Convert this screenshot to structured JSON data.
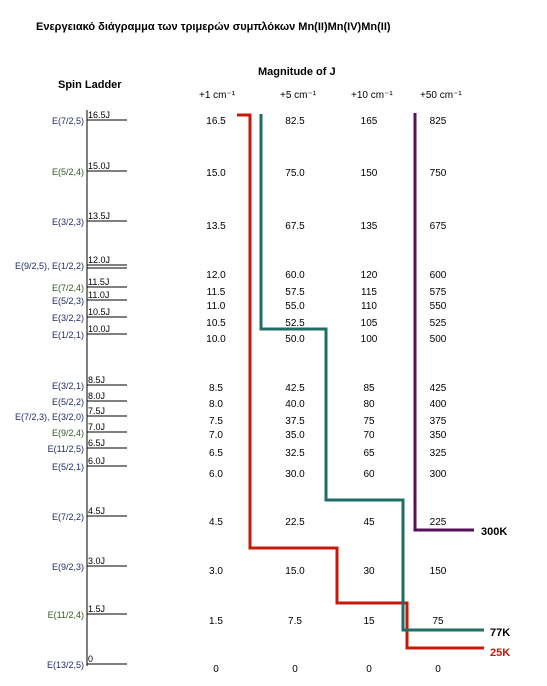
{
  "title": "Ενεργειακό διάγραμμα των τριμερών συμπλόκων Mn(II)Mn(IV)Mn(II)",
  "spin_ladder": {
    "heading": "Spin Ladder",
    "levels": [
      {
        "state": "E(7/2,5)",
        "energy": 16.5,
        "label": "16.5J",
        "state_color": "#1f2a6a"
      },
      {
        "state": "E(5/2,4)",
        "energy": 15.0,
        "label": "15.0J",
        "state_color": "#2e5a1e"
      },
      {
        "state": "E(3/2,3)",
        "energy": 13.5,
        "label": "13.5J",
        "state_color": "#1f2a6a"
      },
      {
        "state": "E(9/2,5), E(1/2,2)",
        "energy": 12.0,
        "label": "12.0J",
        "state_color": "#1f2a6a"
      },
      {
        "state": "E(7/2,4)",
        "energy": 11.5,
        "label": "11.5J",
        "state_color": "#2e5a1e"
      },
      {
        "state": "E(5/2,3)",
        "energy": 11.0,
        "label": "11.0J",
        "state_color": "#1f2a6a"
      },
      {
        "state": "E(3/2,2)",
        "energy": 10.5,
        "label": "10.5J",
        "state_color": "#1f2a6a"
      },
      {
        "state": "E(1/2,1)",
        "energy": 10.0,
        "label": "10.0J",
        "state_color": "#1f2a6a"
      },
      {
        "state": "E(3/2,1)",
        "energy": 8.5,
        "label": "8.5J",
        "state_color": "#1f2a6a"
      },
      {
        "state": "E(5/2,2)",
        "energy": 8.0,
        "label": "8.0J",
        "state_color": "#1f2a6a"
      },
      {
        "state": "E(7/2,3), E(3/2,0)",
        "energy": 7.5,
        "label": "7.5J",
        "state_color": "#1f2a6a"
      },
      {
        "state": "E(9/2,4)",
        "energy": 7.0,
        "label": "7.0J",
        "state_color": "#2e5a1e"
      },
      {
        "state": "E(11/2,5)",
        "energy": 6.5,
        "label": "6.5J",
        "state_color": "#1f2a6a"
      },
      {
        "state": "E(5/2,1)",
        "energy": 6.0,
        "label": "6.0J",
        "state_color": "#1f2a6a"
      },
      {
        "state": "E(7/2,2)",
        "energy": 4.5,
        "label": "4.5J",
        "state_color": "#1f2a6a"
      },
      {
        "state": "E(9/2,3)",
        "energy": 3.0,
        "label": "3.0J",
        "state_color": "#1f2a6a"
      },
      {
        "state": "E(11/2,4)",
        "energy": 1.5,
        "label": "1.5J",
        "state_color": "#2e5a1e"
      },
      {
        "state": "E(13/2,5)",
        "energy": 0,
        "label": "0",
        "state_color": "#1f2a6a"
      }
    ]
  },
  "magnitude": {
    "heading": "Magnitude of J",
    "columns": [
      {
        "header": "+1 cm⁻¹",
        "values": [
          "16.5",
          "15.0",
          "13.5",
          "12.0",
          "11.5",
          "11.0",
          "10.5",
          "10.0",
          "8.5",
          "8.0",
          "7.5",
          "7.0",
          "6.5",
          "6.0",
          "4.5",
          "3.0",
          "1.5",
          "0"
        ]
      },
      {
        "header": "+5 cm⁻¹",
        "values": [
          "82.5",
          "75.0",
          "67.5",
          "60.0",
          "57.5",
          "55.0",
          "52.5",
          "50.0",
          "42.5",
          "40.0",
          "37.5",
          "35.0",
          "32.5",
          "30.0",
          "22.5",
          "15.0",
          "7.5",
          "0"
        ]
      },
      {
        "header": "+10 cm⁻¹",
        "values": [
          "165",
          "150",
          "135",
          "120",
          "115",
          "110",
          "105",
          "100",
          "85",
          "80",
          "75",
          "70",
          "65",
          "60",
          "45",
          "30",
          "15",
          "0"
        ]
      },
      {
        "header": "+50 cm⁻¹",
        "values": [
          "825",
          "750",
          "675",
          "600",
          "575",
          "550",
          "525",
          "500",
          "425",
          "400",
          "375",
          "350",
          "325",
          "300",
          "225",
          "150",
          "75",
          "0"
        ]
      }
    ]
  },
  "temperature_lines": [
    {
      "label": "300K",
      "color": "#5a0f5a"
    },
    {
      "label": "77K",
      "color": "#1e6e64"
    },
    {
      "label": "25K",
      "color": "#c8180a"
    }
  ]
}
